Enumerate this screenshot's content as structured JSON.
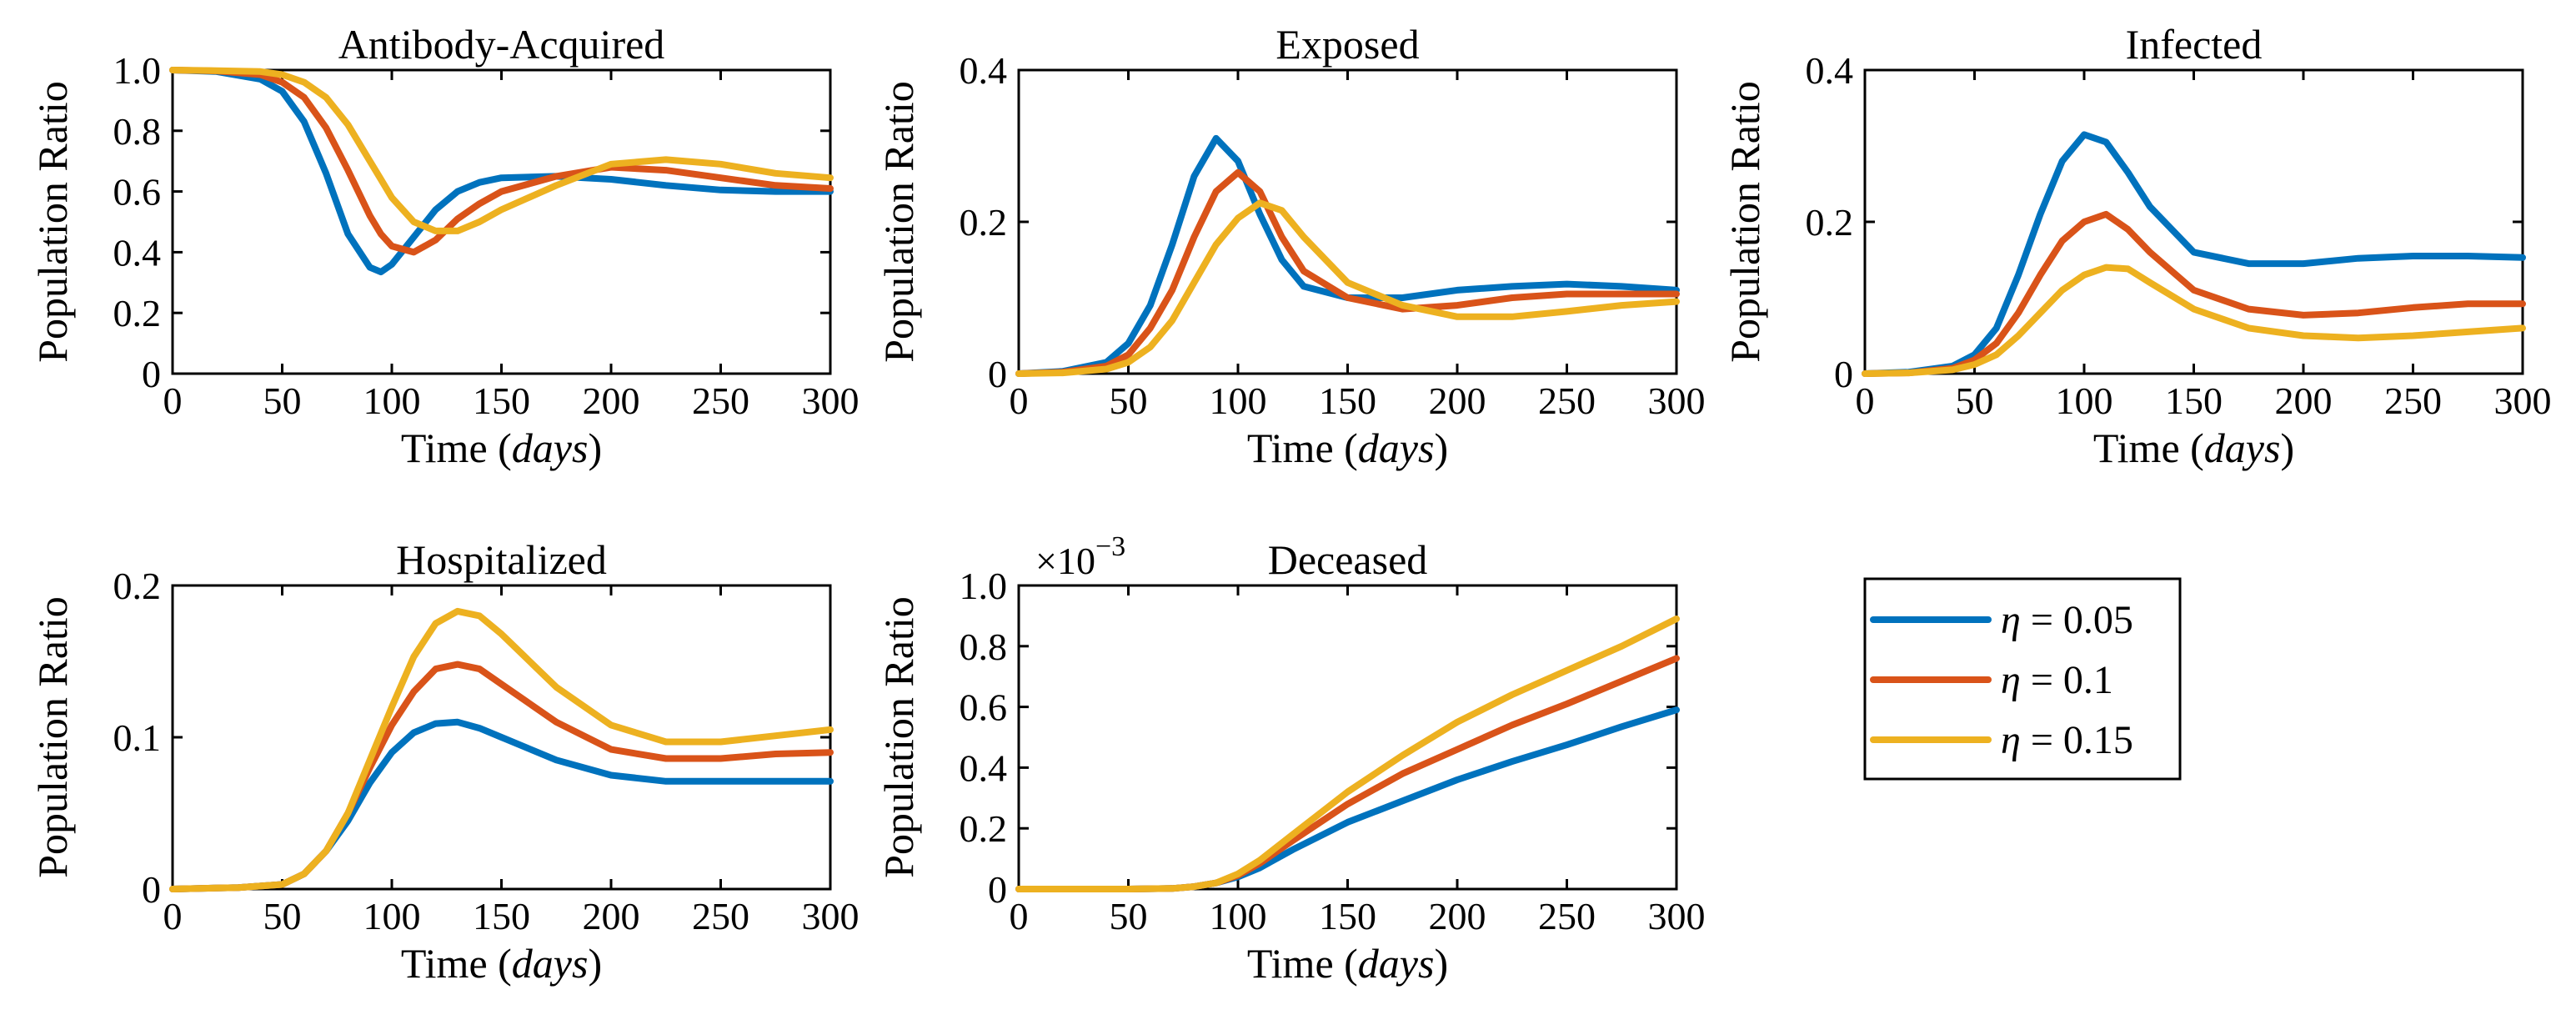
{
  "colors": {
    "eta_0_05": "#0072BD",
    "eta_0_1": "#D95319",
    "eta_0_15": "#EDB120",
    "axis": "#000000"
  },
  "legend": {
    "placement": "right of bottom row",
    "symbol": "η",
    "entries": [
      {
        "label": "= 0.05",
        "color": "#0072BD"
      },
      {
        "label": "= 0.1",
        "color": "#D95319"
      },
      {
        "label": "= 0.15",
        "color": "#EDB120"
      }
    ]
  },
  "chart_data": [
    {
      "type": "line",
      "title": "Antibody-Acquired",
      "xlabel_prefix": "Time (",
      "xlabel_italic": "days",
      "xlabel_suffix": ")",
      "ylabel": "Population Ratio",
      "xlim": [
        0,
        300
      ],
      "ylim": [
        0,
        1
      ],
      "xticks": [
        0,
        50,
        100,
        150,
        200,
        250,
        300
      ],
      "yticks": [
        0,
        0.2,
        0.4,
        0.6,
        0.8,
        1
      ],
      "ytick_labels": [
        "0",
        "0.2",
        "0.4",
        "0.6",
        "0.8",
        "1.0"
      ],
      "x": [
        0,
        20,
        40,
        50,
        60,
        70,
        80,
        90,
        95,
        100,
        110,
        120,
        130,
        140,
        150,
        175,
        200,
        225,
        250,
        275,
        300
      ],
      "series": [
        {
          "name": "η = 0.05",
          "color": "#0072BD",
          "values": [
            1,
            0.995,
            0.97,
            0.93,
            0.83,
            0.66,
            0.46,
            0.35,
            0.335,
            0.36,
            0.45,
            0.54,
            0.6,
            0.63,
            0.645,
            0.65,
            0.64,
            0.62,
            0.605,
            0.6,
            0.6
          ]
        },
        {
          "name": "η = 0.1",
          "color": "#D95319",
          "values": [
            1,
            0.997,
            0.985,
            0.96,
            0.91,
            0.81,
            0.67,
            0.52,
            0.46,
            0.42,
            0.4,
            0.44,
            0.51,
            0.56,
            0.6,
            0.65,
            0.68,
            0.67,
            0.645,
            0.62,
            0.61
          ]
        },
        {
          "name": "η = 0.15",
          "color": "#EDB120",
          "values": [
            1,
            0.998,
            0.995,
            0.985,
            0.96,
            0.91,
            0.82,
            0.7,
            0.64,
            0.58,
            0.5,
            0.47,
            0.47,
            0.5,
            0.54,
            0.62,
            0.69,
            0.705,
            0.69,
            0.66,
            0.645
          ]
        }
      ]
    },
    {
      "type": "line",
      "title": "Exposed",
      "xlabel_prefix": "Time (",
      "xlabel_italic": "days",
      "xlabel_suffix": ")",
      "ylabel": "Population Ratio",
      "xlim": [
        0,
        300
      ],
      "ylim": [
        0,
        0.4
      ],
      "xticks": [
        0,
        50,
        100,
        150,
        200,
        250,
        300
      ],
      "yticks": [
        0,
        0.2,
        0.4
      ],
      "ytick_labels": [
        "0",
        "0.2",
        "0.4"
      ],
      "x": [
        0,
        20,
        40,
        50,
        60,
        70,
        80,
        90,
        100,
        110,
        120,
        130,
        150,
        175,
        200,
        225,
        250,
        275,
        300
      ],
      "series": [
        {
          "name": "η = 0.05",
          "color": "#0072BD",
          "values": [
            0,
            0.003,
            0.015,
            0.04,
            0.09,
            0.17,
            0.26,
            0.31,
            0.28,
            0.21,
            0.15,
            0.115,
            0.1,
            0.1,
            0.11,
            0.115,
            0.118,
            0.115,
            0.11
          ]
        },
        {
          "name": "η = 0.1",
          "color": "#D95319",
          "values": [
            0,
            0.002,
            0.01,
            0.025,
            0.06,
            0.11,
            0.18,
            0.24,
            0.265,
            0.24,
            0.18,
            0.135,
            0.1,
            0.085,
            0.09,
            0.1,
            0.105,
            0.105,
            0.105
          ]
        },
        {
          "name": "η = 0.15",
          "color": "#EDB120",
          "values": [
            0,
            0.001,
            0.006,
            0.015,
            0.035,
            0.07,
            0.12,
            0.17,
            0.205,
            0.225,
            0.215,
            0.18,
            0.12,
            0.09,
            0.075,
            0.075,
            0.082,
            0.09,
            0.095
          ]
        }
      ]
    },
    {
      "type": "line",
      "title": "Infected",
      "xlabel_prefix": "Time (",
      "xlabel_italic": "days",
      "xlabel_suffix": ")",
      "ylabel": "Population Ratio",
      "xlim": [
        0,
        300
      ],
      "ylim": [
        0,
        0.4
      ],
      "xticks": [
        0,
        50,
        100,
        150,
        200,
        250,
        300
      ],
      "yticks": [
        0,
        0.2,
        0.4
      ],
      "ytick_labels": [
        "0",
        "0.2",
        "0.4"
      ],
      "x": [
        0,
        20,
        40,
        50,
        60,
        70,
        80,
        90,
        100,
        110,
        120,
        130,
        150,
        175,
        200,
        225,
        250,
        275,
        300
      ],
      "series": [
        {
          "name": "η = 0.05",
          "color": "#0072BD",
          "values": [
            0,
            0.002,
            0.01,
            0.025,
            0.06,
            0.13,
            0.21,
            0.28,
            0.315,
            0.305,
            0.265,
            0.22,
            0.16,
            0.145,
            0.145,
            0.152,
            0.155,
            0.155,
            0.153
          ]
        },
        {
          "name": "η = 0.1",
          "color": "#D95319",
          "values": [
            0,
            0.001,
            0.007,
            0.018,
            0.04,
            0.08,
            0.13,
            0.175,
            0.2,
            0.21,
            0.19,
            0.16,
            0.11,
            0.085,
            0.077,
            0.08,
            0.087,
            0.092,
            0.092
          ]
        },
        {
          "name": "η = 0.15",
          "color": "#EDB120",
          "values": [
            0,
            0.001,
            0.005,
            0.012,
            0.025,
            0.05,
            0.08,
            0.11,
            0.13,
            0.14,
            0.138,
            0.12,
            0.085,
            0.06,
            0.05,
            0.047,
            0.05,
            0.055,
            0.06
          ]
        }
      ]
    },
    {
      "type": "line",
      "title": "Hospitalized",
      "xlabel_prefix": "Time (",
      "xlabel_italic": "days",
      "xlabel_suffix": ")",
      "ylabel": "Population Ratio",
      "xlim": [
        0,
        300
      ],
      "ylim": [
        0,
        0.2
      ],
      "xticks": [
        0,
        50,
        100,
        150,
        200,
        250,
        300
      ],
      "yticks": [
        0,
        0.1,
        0.2
      ],
      "ytick_labels": [
        "0",
        "0.1",
        "0.2"
      ],
      "x": [
        0,
        30,
        50,
        60,
        70,
        80,
        90,
        100,
        110,
        120,
        130,
        140,
        150,
        175,
        200,
        225,
        250,
        275,
        300
      ],
      "series": [
        {
          "name": "η = 0.05",
          "color": "#0072BD",
          "values": [
            0,
            0.001,
            0.003,
            0.01,
            0.025,
            0.045,
            0.07,
            0.09,
            0.103,
            0.109,
            0.11,
            0.106,
            0.1,
            0.085,
            0.075,
            0.071,
            0.071,
            0.071,
            0.071
          ]
        },
        {
          "name": "η = 0.1",
          "color": "#D95319",
          "values": [
            0,
            0.001,
            0.003,
            0.01,
            0.025,
            0.05,
            0.08,
            0.108,
            0.13,
            0.145,
            0.148,
            0.145,
            0.135,
            0.11,
            0.092,
            0.086,
            0.086,
            0.089,
            0.09
          ]
        },
        {
          "name": "η = 0.15",
          "color": "#EDB120",
          "values": [
            0,
            0.001,
            0.003,
            0.01,
            0.025,
            0.05,
            0.085,
            0.12,
            0.153,
            0.175,
            0.183,
            0.18,
            0.168,
            0.133,
            0.108,
            0.097,
            0.097,
            0.101,
            0.105
          ]
        }
      ]
    },
    {
      "type": "line",
      "title": "Deceased",
      "exponent_label": "×10",
      "exponent_power": "−3",
      "xlabel_prefix": "Time (",
      "xlabel_italic": "days",
      "xlabel_suffix": ")",
      "ylabel": "Population Ratio",
      "xlim": [
        0,
        300
      ],
      "ylim": [
        0,
        1
      ],
      "xticks": [
        0,
        50,
        100,
        150,
        200,
        250,
        300
      ],
      "yticks": [
        0,
        0.2,
        0.4,
        0.6,
        0.8,
        1
      ],
      "ytick_labels": [
        "0",
        "0.2",
        "0.4",
        "0.6",
        "0.8",
        "1.0"
      ],
      "x": [
        0,
        50,
        70,
        80,
        90,
        100,
        110,
        125,
        150,
        175,
        200,
        225,
        250,
        275,
        300
      ],
      "series": [
        {
          "name": "η = 0.05",
          "color": "#0072BD",
          "values": [
            0,
            0,
            0.002,
            0.008,
            0.02,
            0.04,
            0.07,
            0.13,
            0.22,
            0.29,
            0.36,
            0.42,
            0.475,
            0.535,
            0.59
          ]
        },
        {
          "name": "η = 0.1",
          "color": "#D95319",
          "values": [
            0,
            0,
            0.002,
            0.008,
            0.02,
            0.045,
            0.085,
            0.16,
            0.28,
            0.38,
            0.46,
            0.54,
            0.61,
            0.685,
            0.76
          ]
        },
        {
          "name": "η = 0.15",
          "color": "#EDB120",
          "values": [
            0,
            0,
            0.002,
            0.008,
            0.02,
            0.05,
            0.095,
            0.18,
            0.32,
            0.44,
            0.55,
            0.64,
            0.72,
            0.8,
            0.89
          ]
        }
      ]
    }
  ]
}
